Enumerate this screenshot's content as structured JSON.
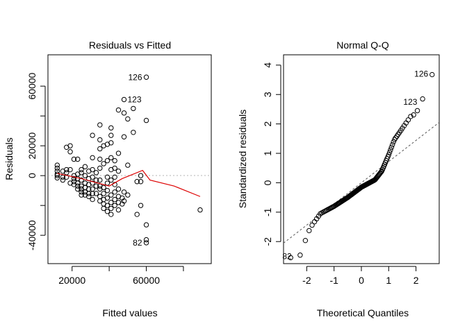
{
  "colors": {
    "points": "#000000",
    "smooth": "#dd0000",
    "zero_line": "#b3b3b3",
    "ref_line": "#555555"
  },
  "chart_data": [
    {
      "type": "scatter",
      "title": "Residuals vs Fitted",
      "xlabel": "Fitted values",
      "ylabel": "Residuals",
      "xlim": [
        7000,
        95000
      ],
      "ylim": [
        -59000,
        81000
      ],
      "xticks": [
        20000,
        40000,
        60000,
        80000
      ],
      "xtick_labels": [
        "20000",
        "",
        "60000",
        ""
      ],
      "yticks": [
        -40000,
        -20000,
        0,
        20000,
        40000,
        60000
      ],
      "ytick_labels": [
        "-40000",
        "",
        "0",
        "20000",
        "",
        "60000"
      ],
      "reference_line": {
        "y": 0,
        "style": "dotted"
      },
      "points": [
        [
          12000,
          7000
        ],
        [
          12000,
          5000
        ],
        [
          12000,
          3000
        ],
        [
          12000,
          1000
        ],
        [
          12000,
          0
        ],
        [
          12000,
          -1500
        ],
        [
          15000,
          3000
        ],
        [
          15000,
          -1000
        ],
        [
          15000,
          -3000
        ],
        [
          17000,
          19000
        ],
        [
          17000,
          4000
        ],
        [
          17000,
          2000
        ],
        [
          17000,
          -1000
        ],
        [
          19000,
          20000
        ],
        [
          19000,
          16000
        ],
        [
          19000,
          4000
        ],
        [
          19000,
          -5000
        ],
        [
          21000,
          11000
        ],
        [
          21000,
          0
        ],
        [
          21000,
          -2000
        ],
        [
          21000,
          -4000
        ],
        [
          21000,
          -6000
        ],
        [
          23000,
          11000
        ],
        [
          23000,
          1000
        ],
        [
          23000,
          -2000
        ],
        [
          23000,
          -5000
        ],
        [
          23000,
          -7000
        ],
        [
          23000,
          -9000
        ],
        [
          25000,
          4000
        ],
        [
          25000,
          2000
        ],
        [
          25000,
          -3000
        ],
        [
          25000,
          -7000
        ],
        [
          25000,
          -9000
        ],
        [
          25000,
          -11000
        ],
        [
          25000,
          -13000
        ],
        [
          27000,
          6000
        ],
        [
          27000,
          0
        ],
        [
          27000,
          -5000
        ],
        [
          27000,
          -8000
        ],
        [
          27000,
          -11000
        ],
        [
          27000,
          -13000
        ],
        [
          29000,
          3000
        ],
        [
          29000,
          -2000
        ],
        [
          29000,
          -6000
        ],
        [
          29000,
          -9000
        ],
        [
          29000,
          -12000
        ],
        [
          29000,
          -14000
        ],
        [
          31000,
          27000
        ],
        [
          31000,
          12000
        ],
        [
          31000,
          4000
        ],
        [
          31000,
          -1000
        ],
        [
          31000,
          -5000
        ],
        [
          31000,
          -9000
        ],
        [
          31000,
          -12000
        ],
        [
          31000,
          -16000
        ],
        [
          33000,
          2000
        ],
        [
          33000,
          -3000
        ],
        [
          33000,
          -7000
        ],
        [
          33000,
          -12000
        ],
        [
          35000,
          34000
        ],
        [
          35000,
          24000
        ],
        [
          35000,
          18000
        ],
        [
          35000,
          11000
        ],
        [
          35000,
          5000
        ],
        [
          35000,
          -3000
        ],
        [
          35000,
          -7000
        ],
        [
          35000,
          -9000
        ],
        [
          35000,
          -14000
        ],
        [
          35000,
          -17000
        ],
        [
          37000,
          20000
        ],
        [
          37000,
          8000
        ],
        [
          37000,
          -8000
        ],
        [
          37000,
          -12000
        ],
        [
          37000,
          -16000
        ],
        [
          37000,
          -19000
        ],
        [
          37000,
          -22000
        ],
        [
          39000,
          21000
        ],
        [
          39000,
          10000
        ],
        [
          39000,
          -1000
        ],
        [
          39000,
          -5000
        ],
        [
          39000,
          -10000
        ],
        [
          39000,
          -15000
        ],
        [
          39000,
          -20000
        ],
        [
          39000,
          -24000
        ],
        [
          41000,
          32000
        ],
        [
          41000,
          27000
        ],
        [
          41000,
          22000
        ],
        [
          41000,
          12000
        ],
        [
          41000,
          4000
        ],
        [
          41000,
          -3000
        ],
        [
          41000,
          -13000
        ],
        [
          41000,
          -18000
        ],
        [
          41000,
          -22000
        ],
        [
          41000,
          -26000
        ],
        [
          43000,
          10000
        ],
        [
          43000,
          5000
        ],
        [
          43000,
          -1000
        ],
        [
          43000,
          -6000
        ],
        [
          43000,
          -11000
        ],
        [
          43000,
          -16000
        ],
        [
          43000,
          -20000
        ],
        [
          45000,
          44000
        ],
        [
          45000,
          15000
        ],
        [
          45000,
          3000
        ],
        [
          45000,
          -9000
        ],
        [
          45000,
          -14000
        ],
        [
          45000,
          -18000
        ],
        [
          45000,
          -23000
        ],
        [
          47000,
          -15000
        ],
        [
          47000,
          -19000
        ],
        [
          48000,
          51000
        ],
        [
          48000,
          42000
        ],
        [
          48000,
          26000
        ],
        [
          48000,
          -11000
        ],
        [
          48000,
          -17000
        ],
        [
          50000,
          38000
        ],
        [
          50000,
          7000
        ],
        [
          50000,
          -13000
        ],
        [
          53000,
          45000
        ],
        [
          53000,
          29000
        ],
        [
          55000,
          -26000
        ],
        [
          55000,
          -4000
        ],
        [
          57000,
          0
        ],
        [
          57000,
          -4000
        ],
        [
          57000,
          -20000
        ],
        [
          60000,
          66000
        ],
        [
          60000,
          37000
        ],
        [
          60000,
          -33000
        ],
        [
          60000,
          -43000
        ],
        [
          60000,
          -45000
        ],
        [
          89000,
          -23000
        ]
      ],
      "smooth_line": [
        [
          12000,
          1500
        ],
        [
          25000,
          -2000
        ],
        [
          40000,
          -7000
        ],
        [
          47000,
          -2000
        ],
        [
          58000,
          3500
        ],
        [
          62000,
          -3000
        ],
        [
          75000,
          -7000
        ],
        [
          89000,
          -14000
        ]
      ],
      "annotations": [
        {
          "label": "126",
          "x": 60000,
          "y": 66000,
          "side": "left"
        },
        {
          "label": "123",
          "x": 48000,
          "y": 51000,
          "side": "right"
        },
        {
          "label": "82",
          "x": 60000,
          "y": -45000,
          "side": "left"
        }
      ]
    },
    {
      "type": "scatter",
      "title": "Normal Q-Q",
      "xlabel": "Theoretical Quantiles",
      "ylabel": "Standardized residuals",
      "xlim": [
        -2.85,
        2.85
      ],
      "ylim": [
        -2.75,
        4.35
      ],
      "xticks": [
        -2,
        -1,
        0,
        1,
        2
      ],
      "xtick_labels": [
        "-2",
        "-1",
        "0",
        "1",
        "2"
      ],
      "yticks": [
        -2,
        -1,
        0,
        1,
        2,
        3,
        4
      ],
      "ytick_labels": [
        "-2",
        "-1",
        "0",
        "1",
        "2",
        "3",
        "4"
      ],
      "reference_line": {
        "intercept": 0.0,
        "slope": 0.72,
        "style": "dashed"
      },
      "n_points": 130,
      "anchors": [
        [
          -2.6,
          -2.55
        ],
        [
          -2.4,
          -2.5
        ],
        [
          -2.2,
          -2.45
        ],
        [
          -2.0,
          -1.8
        ],
        [
          -1.85,
          -1.5
        ],
        [
          -1.5,
          -1.05
        ],
        [
          -1.0,
          -0.8
        ],
        [
          -0.5,
          -0.5
        ],
        [
          0.0,
          -0.15
        ],
        [
          0.5,
          0.1
        ],
        [
          0.75,
          0.4
        ],
        [
          1.0,
          0.95
        ],
        [
          1.2,
          1.45
        ],
        [
          1.5,
          1.85
        ],
        [
          1.8,
          2.25
        ],
        [
          2.0,
          2.35
        ],
        [
          2.2,
          2.75
        ],
        [
          2.6,
          3.7
        ]
      ],
      "annotations": [
        {
          "label": "126",
          "x": 2.6,
          "y": 3.7,
          "side": "left"
        },
        {
          "label": "123",
          "x": 2.2,
          "y": 2.75,
          "side": "left"
        },
        {
          "label": "82",
          "x": -2.4,
          "y": -2.5,
          "side": "left"
        }
      ]
    }
  ]
}
